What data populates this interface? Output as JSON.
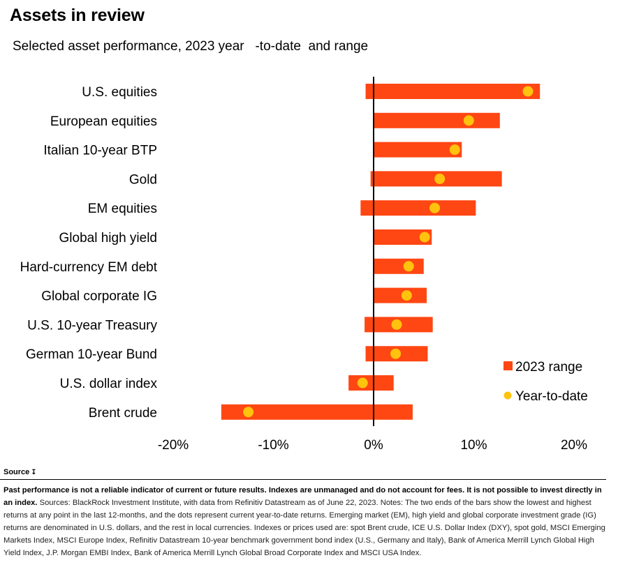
{
  "header": {
    "title": "Assets in review",
    "subtitle": "Selected asset performance, 2023 year   -to-date  and range"
  },
  "colors": {
    "range_bar": "#ff4713",
    "ytd_dot": "#ffc20e",
    "zero_line": "#000000"
  },
  "chart_data": {
    "type": "bar",
    "orientation": "horizontal",
    "categories": [
      "U.S. equities",
      "European equities",
      "Italian 10-year BTP",
      "Gold",
      "EM equities",
      "Global high yield",
      "Hard-currency EM debt",
      "Global corporate IG",
      "U.S. 10-year Treasury",
      "German 10-year Bund",
      "U.S. dollar index",
      "Brent crude"
    ],
    "series": [
      {
        "name": "2023 range",
        "ranges": [
          [
            -0.8,
            16.6
          ],
          [
            0.0,
            12.6
          ],
          [
            0.0,
            8.8
          ],
          [
            -0.3,
            12.8
          ],
          [
            -1.3,
            10.2
          ],
          [
            0.0,
            5.8
          ],
          [
            0.0,
            5.0
          ],
          [
            0.0,
            5.3
          ],
          [
            -0.9,
            5.9
          ],
          [
            -0.8,
            5.4
          ],
          [
            -2.5,
            2.0
          ],
          [
            -15.2,
            3.9
          ]
        ]
      },
      {
        "name": "Year-to-date",
        "values": [
          15.4,
          9.5,
          8.1,
          6.6,
          6.1,
          5.1,
          3.5,
          3.3,
          2.3,
          2.2,
          -1.1,
          -12.5
        ]
      }
    ],
    "x_ticks": [
      "-20%",
      "-10%",
      "0%",
      "10%",
      "20%"
    ],
    "xlim": [
      -20,
      20
    ],
    "grid": false,
    "legend_position": "bottom-right",
    "legend": [
      "2023 range",
      "Year-to-date"
    ]
  },
  "source": {
    "toggle_label": "Source",
    "disclaimer_bold": "Past performance is not a reliable indicator of current or future results. Indexes are unmanaged and do not account for fees. It is not possible to invest directly in an index.",
    "notes": "Sources: BlackRock Investment Institute, with data from Refinitiv Datastream as of June 22, 2023. Notes: The two ends of the bars show the lowest and highest returns at any point in the last 12-months, and the dots represent current year-to-date returns. Emerging market (EM), high yield and global corporate investment grade (IG) returns are denominated in U.S. dollars, and the rest in local currencies. Indexes or prices used are: spot Brent crude, ICE U.S. Dollar Index (DXY), spot gold, MSCI Emerging Markets Index, MSCI Europe Index, Refinitiv Datastream 10-year benchmark government bond index (U.S., Germany and Italy), Bank of America Merrill Lynch Global High Yield Index, J.P. Morgan EMBI Index, Bank of America Merrill Lynch Global Broad Corporate Index and MSCI USA Index."
  }
}
